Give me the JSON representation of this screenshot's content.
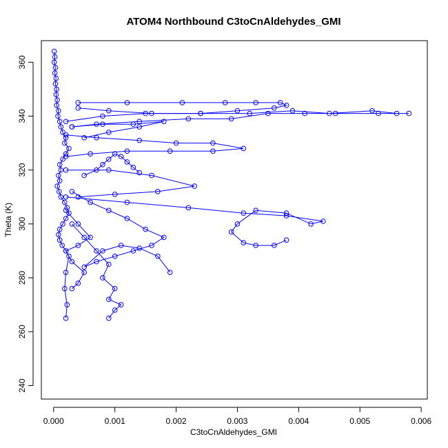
{
  "chart_data": {
    "type": "line",
    "title": "ATOM4 Northbound C3toCnAldehydes_GMI",
    "xlabel": "C3toCnAldehydes_GMI",
    "ylabel": "Theta (K)",
    "xlim": [
      -0.0002,
      0.0061
    ],
    "ylim": [
      235,
      368
    ],
    "xticks": [
      0.0,
      0.001,
      0.002,
      0.003,
      0.004,
      0.005,
      0.006
    ],
    "xtick_labels": [
      "0.000",
      "0.001",
      "0.002",
      "0.003",
      "0.004",
      "0.005",
      "0.006"
    ],
    "yticks": [
      240,
      260,
      280,
      300,
      320,
      340,
      360
    ],
    "ytick_labels": [
      "240",
      "260",
      "280",
      "300",
      "320",
      "340",
      "360"
    ],
    "grid": false,
    "legend": "none",
    "markers": "open-circle",
    "color": "#0000ff",
    "series": [
      {
        "x": [
          1e-05,
          2e-05,
          1e-05,
          3e-05,
          2e-05,
          4e-05,
          3e-05,
          5e-05,
          4e-05,
          6e-05,
          5e-05,
          8e-05,
          7e-05,
          0.0001,
          0.00012,
          0.00015,
          0.0002,
          0.00018,
          0.00025,
          0.0002,
          0.00015,
          0.0001,
          0.00012,
          8e-05,
          0.0001,
          6e-05,
          9e-05,
          0.00012,
          0.00018,
          0.00022,
          0.00025,
          0.0002,
          0.00015,
          0.0001,
          8e-05,
          0.0001,
          0.00014,
          0.0002,
          0.00025,
          0.0002,
          0.00018,
          0.00022,
          0.0002
        ],
        "y": [
          364,
          362,
          360,
          358,
          356,
          354,
          352,
          350,
          348,
          346,
          344,
          342,
          340,
          338,
          336,
          334,
          332,
          330,
          328,
          326,
          324,
          322,
          320,
          318,
          316,
          314,
          312,
          310,
          308,
          306,
          304,
          302,
          300,
          298,
          296,
          294,
          292,
          290,
          288,
          282,
          276,
          270,
          265
        ]
      },
      {
        "x": [
          0.0002,
          0.0008,
          0.0015,
          0.0024,
          0.0032,
          0.0039,
          0.0045,
          0.0052,
          0.0056,
          0.0058,
          0.0053,
          0.0046,
          0.0041,
          0.0035,
          0.0029,
          0.0022,
          0.0014,
          0.0007,
          0.0003
        ],
        "y": [
          338,
          340,
          341,
          341,
          341,
          342,
          341,
          342,
          341,
          341,
          341,
          341,
          341,
          341,
          339,
          339,
          338,
          337,
          336
        ]
      },
      {
        "x": [
          0.0004,
          0.0012,
          0.0021,
          0.0028,
          0.0033,
          0.0037,
          0.0038,
          0.0036,
          0.003,
          0.0024,
          0.0016,
          0.0009,
          0.0004
        ],
        "y": [
          345,
          345,
          345,
          345,
          345,
          345,
          344,
          343,
          342,
          341,
          341,
          342,
          343
        ]
      },
      {
        "x": [
          0.0002,
          0.0007,
          0.0014,
          0.002,
          0.0026,
          0.0031,
          0.0026,
          0.0019,
          0.0012,
          0.0006,
          0.0002
        ],
        "y": [
          333,
          332,
          331,
          330,
          330,
          328,
          327,
          327,
          327,
          326,
          325
        ]
      },
      {
        "x": [
          0.0002,
          0.0009,
          0.0016,
          0.0023,
          0.0017,
          0.001,
          0.0004
        ],
        "y": [
          320,
          320,
          318,
          314,
          312,
          311,
          310
        ]
      },
      {
        "x": [
          0.0002,
          0.0012,
          0.0022,
          0.0031,
          0.0038,
          0.0044,
          0.0042,
          0.0038,
          0.0033,
          0.003,
          0.0029,
          0.0031,
          0.0033,
          0.0036,
          0.0038
        ],
        "y": [
          310,
          308,
          306,
          304,
          303,
          301,
          300,
          304,
          305,
          300,
          297,
          293,
          292,
          292,
          294
        ]
      },
      {
        "x": [
          0.0003,
          0.0006,
          0.0009,
          0.0012,
          0.0015,
          0.0018,
          0.0016,
          0.0013,
          0.001,
          0.0007,
          0.0005,
          0.0008,
          0.0011,
          0.0014,
          0.0017,
          0.0019
        ],
        "y": [
          312,
          308,
          305,
          302,
          298,
          295,
          292,
          290,
          288,
          286,
          284,
          290,
          292,
          291,
          288,
          282
        ]
      },
      {
        "x": [
          0.0003,
          0.0005,
          0.0007,
          0.0009,
          0.0008,
          0.001,
          0.0009,
          0.0011,
          0.001,
          0.0009
        ],
        "y": [
          300,
          295,
          290,
          285,
          280,
          276,
          272,
          270,
          268,
          265
        ]
      },
      {
        "x": [
          0.0002,
          0.0004,
          0.0006,
          0.0004,
          0.0002,
          0.0003,
          0.0005,
          0.0004,
          0.0003
        ],
        "y": [
          305,
          300,
          295,
          292,
          290,
          286,
          282,
          278,
          276
        ]
      },
      {
        "x": [
          0.0005,
          0.0007,
          0.0008,
          0.0009,
          0.001,
          0.0011,
          0.0012,
          0.0013,
          0.0014
        ],
        "y": [
          318,
          320,
          322,
          324,
          326,
          325,
          323,
          321,
          319
        ]
      },
      {
        "x": [
          0.0003,
          0.0008,
          0.0013,
          0.0018,
          0.0014,
          0.0009,
          0.0005
        ],
        "y": [
          336,
          337,
          337,
          338,
          336,
          334,
          332
        ]
      }
    ]
  }
}
